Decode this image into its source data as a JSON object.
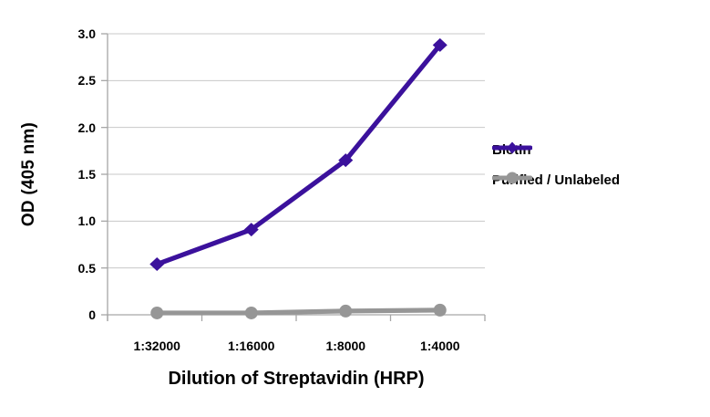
{
  "chart_data": {
    "type": "line",
    "title": "",
    "xlabel": "Dilution of Streptavidin (HRP)",
    "ylabel": "OD (405 nm)",
    "categories": [
      "1:32000",
      "1:16000",
      "1:8000",
      "1:4000"
    ],
    "series": [
      {
        "name": "Biotin",
        "values": [
          0.54,
          0.91,
          1.65,
          2.88
        ],
        "color": "#3b119c",
        "marker": "diamond"
      },
      {
        "name": "Purified / Unlabeled",
        "values": [
          0.02,
          0.02,
          0.04,
          0.05
        ],
        "color": "#969696",
        "marker": "circle"
      }
    ],
    "ylim": [
      0,
      3.0
    ],
    "y_ticks": [
      0,
      0.5,
      1.0,
      1.5,
      2.0,
      2.5,
      3.0
    ],
    "y_tick_labels": [
      "0",
      "0.5",
      "1.0",
      "1.5",
      "2.0",
      "2.5",
      "3.0"
    ],
    "grid": true,
    "legend_position": "right"
  },
  "colors": {
    "background": "#ffffff",
    "gridline": "#c8c8c8",
    "axis": "#a6a6a6",
    "text": "#000000"
  }
}
